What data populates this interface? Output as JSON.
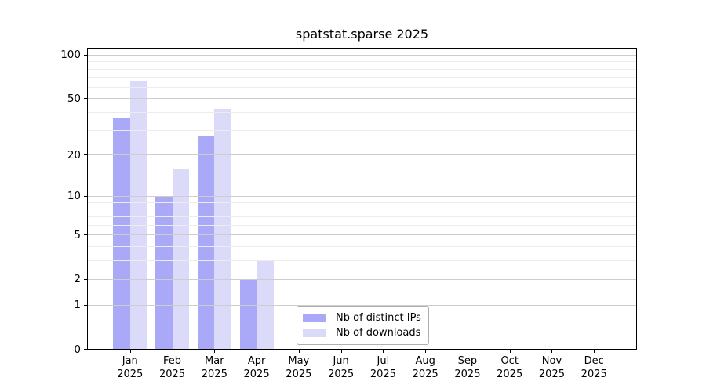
{
  "title": "spatstat.sparse 2025",
  "chart_data": {
    "type": "bar",
    "title": "spatstat.sparse 2025",
    "categories": [
      "Jan",
      "Feb",
      "Mar",
      "Apr",
      "May",
      "Jun",
      "Jul",
      "Aug",
      "Sep",
      "Oct",
      "Nov",
      "Dec"
    ],
    "x_second_line": "2025",
    "series": [
      {
        "name": "Nb of distinct IPs",
        "color": "#a9a9f8",
        "values": [
          36,
          10,
          27,
          2,
          0,
          0,
          0,
          0,
          0,
          0,
          0,
          0
        ]
      },
      {
        "name": "Nb of downloads",
        "color": "#dbdbf9",
        "values": [
          66,
          16,
          42,
          3,
          0,
          0,
          0,
          0,
          0,
          0,
          0,
          0
        ]
      }
    ],
    "yscale": "log1p",
    "ylim": [
      0,
      110
    ],
    "yticks": [
      0,
      1,
      2,
      5,
      10,
      20,
      50,
      100
    ],
    "minor_yticks": [
      3,
      4,
      6,
      7,
      8,
      9,
      30,
      40,
      60,
      70,
      80,
      90
    ],
    "grid": true,
    "legend_position": "lower center"
  },
  "colors": {
    "major_grid": "#cdcdcd",
    "minor_grid": "#ececec",
    "axis": "#000000",
    "background": "#ffffff",
    "legend_border": "#b0b0b0"
  }
}
